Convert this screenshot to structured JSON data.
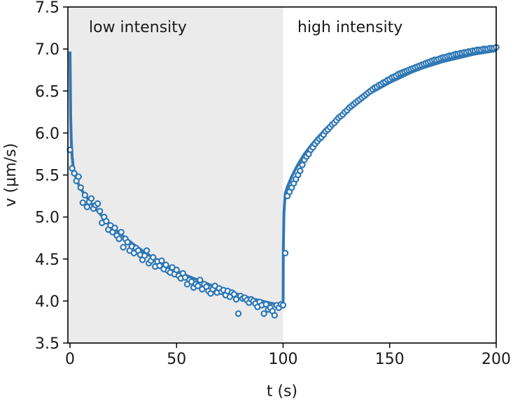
{
  "colors": {
    "series": "#2f78b5",
    "shade": "#ebebeb",
    "axis": "#000000",
    "text": "#1a1a1a",
    "marker_fill": "#ffffff"
  },
  "chart_data": {
    "type": "scatter",
    "xlabel": "t (s)",
    "ylabel": "v (µm/s)",
    "xlim": [
      -1,
      200
    ],
    "ylim": [
      3.5,
      7.5
    ],
    "xticks": [
      0,
      50,
      100,
      150,
      200
    ],
    "xtick_labels": [
      "0",
      "50",
      "100",
      "150",
      "200"
    ],
    "yticks": [
      3.5,
      4.0,
      4.5,
      5.0,
      5.5,
      6.0,
      6.5,
      7.0,
      7.5
    ],
    "ytick_labels": [
      "3.5",
      "4.0",
      "4.5",
      "5.0",
      "5.5",
      "6.0",
      "6.5",
      "7.0",
      "7.5"
    ],
    "grid": false,
    "regions": [
      {
        "label": "low intensity",
        "x_range": [
          -1,
          100
        ],
        "shaded": true
      },
      {
        "label": "high intensity",
        "x_range": [
          100,
          200
        ],
        "shaded": false
      }
    ],
    "series": [
      {
        "kind": "points",
        "x": [
          0,
          1,
          2,
          3,
          4,
          5,
          6,
          7,
          8,
          9,
          10,
          11,
          12,
          13,
          14,
          15,
          16,
          17,
          18,
          19,
          20,
          21,
          22,
          23,
          24,
          25,
          26,
          27,
          28,
          29,
          30,
          31,
          32,
          33,
          34,
          35,
          36,
          37,
          38,
          39,
          40,
          41,
          42,
          43,
          44,
          45,
          46,
          47,
          48,
          49,
          50,
          51,
          52,
          53,
          54,
          55,
          56,
          57,
          58,
          59,
          60,
          61,
          62,
          63,
          64,
          65,
          66,
          67,
          68,
          69,
          70,
          71,
          72,
          73,
          74,
          75,
          76,
          77,
          78,
          79,
          80,
          81,
          82,
          83,
          84,
          85,
          86,
          87,
          88,
          89,
          90,
          91,
          92,
          93,
          94,
          95,
          96,
          97,
          98,
          99,
          100,
          101,
          102,
          103,
          104,
          105,
          106,
          107,
          108,
          109,
          110,
          111,
          112,
          113,
          114,
          115,
          116,
          117,
          118,
          119,
          120,
          121,
          122,
          123,
          124,
          125,
          126,
          127,
          128,
          129,
          130,
          131,
          132,
          133,
          134,
          135,
          136,
          137,
          138,
          139,
          140,
          141,
          142,
          143,
          144,
          145,
          146,
          147,
          148,
          149,
          150,
          151,
          152,
          153,
          154,
          155,
          156,
          157,
          158,
          159,
          160,
          161,
          162,
          163,
          164,
          165,
          166,
          167,
          168,
          169,
          170,
          171,
          172,
          173,
          174,
          175,
          176,
          177,
          178,
          179,
          180,
          181,
          182,
          183,
          184,
          185,
          186,
          187,
          188,
          189,
          190,
          191,
          192,
          193,
          194,
          195,
          196,
          197,
          198,
          199,
          200
        ],
        "y": [
          5.8,
          5.58,
          5.52,
          5.43,
          5.48,
          5.35,
          5.17,
          5.26,
          5.12,
          5.18,
          5.22,
          5.1,
          5.14,
          5.16,
          5.07,
          4.93,
          5.0,
          4.95,
          4.85,
          4.9,
          4.82,
          4.87,
          4.78,
          4.74,
          4.82,
          4.64,
          4.74,
          4.7,
          4.6,
          4.65,
          4.57,
          4.63,
          4.6,
          4.55,
          4.49,
          4.54,
          4.6,
          4.45,
          4.48,
          4.52,
          4.41,
          4.47,
          4.42,
          4.48,
          4.38,
          4.43,
          4.36,
          4.34,
          4.4,
          4.32,
          4.37,
          4.3,
          4.27,
          4.33,
          4.28,
          4.2,
          4.25,
          4.23,
          4.16,
          4.2,
          4.18,
          4.25,
          4.14,
          4.2,
          4.17,
          4.12,
          4.09,
          4.14,
          4.18,
          4.1,
          4.15,
          4.11,
          4.13,
          4.07,
          4.12,
          4.05,
          4.1,
          4.08,
          4.02,
          3.85,
          4.06,
          4.03,
          4.04,
          4.01,
          3.98,
          4.02,
          4.0,
          3.97,
          3.93,
          3.99,
          3.95,
          3.85,
          3.96,
          3.9,
          3.92,
          3.88,
          3.83,
          3.95,
          3.92,
          3.96,
          3.95,
          4.57,
          5.25,
          5.3,
          5.35,
          5.4,
          5.45,
          5.5,
          5.55,
          5.62,
          5.68,
          5.72,
          5.75,
          5.8,
          5.83,
          5.87,
          5.9,
          5.93,
          5.95,
          5.98,
          6.02,
          6.04,
          6.07,
          6.1,
          6.12,
          6.15,
          6.18,
          6.2,
          6.22,
          6.25,
          6.27,
          6.3,
          6.32,
          6.34,
          6.36,
          6.38,
          6.4,
          6.42,
          6.44,
          6.46,
          6.48,
          6.5,
          6.52,
          6.54,
          6.55,
          6.57,
          6.58,
          6.6,
          6.61,
          6.63,
          6.64,
          6.66,
          6.67,
          6.68,
          6.7,
          6.71,
          6.72,
          6.73,
          6.74,
          6.75,
          6.76,
          6.77,
          6.78,
          6.79,
          6.8,
          6.81,
          6.82,
          6.83,
          6.84,
          6.85,
          6.86,
          6.87,
          6.87,
          6.88,
          6.89,
          6.9,
          6.9,
          6.91,
          6.92,
          6.92,
          6.93,
          6.94,
          6.94,
          6.95,
          6.95,
          6.96,
          6.96,
          6.97,
          6.97,
          6.98,
          6.98,
          6.99,
          6.99,
          6.99,
          7.0,
          7.0,
          7.0,
          7.01,
          7.01,
          7.01,
          7.02
        ],
        "style": "open-circle"
      },
      {
        "kind": "fit-line",
        "x": [
          0,
          0.3,
          0.6,
          1,
          1.5,
          2,
          3,
          4,
          5,
          6,
          8,
          10,
          12,
          15,
          18,
          21,
          25,
          30,
          35,
          40,
          45,
          50,
          55,
          60,
          65,
          70,
          75,
          80,
          85,
          90,
          95,
          99.9,
          100,
          100.1,
          100.4,
          101,
          102,
          103,
          104,
          106,
          108,
          110,
          113,
          116,
          120,
          125,
          130,
          135,
          140,
          145,
          150,
          155,
          160,
          165,
          170,
          175,
          180,
          185,
          190,
          195,
          200
        ],
        "y": [
          6.97,
          6.2,
          5.9,
          5.72,
          5.6,
          5.53,
          5.45,
          5.39,
          5.34,
          5.3,
          5.23,
          5.16,
          5.1,
          5.01,
          4.93,
          4.86,
          4.77,
          4.67,
          4.58,
          4.5,
          4.43,
          4.36,
          4.3,
          4.25,
          4.2,
          4.15,
          4.11,
          4.07,
          4.03,
          4.0,
          3.97,
          3.94,
          3.94,
          4.6,
          5.05,
          5.28,
          5.36,
          5.42,
          5.48,
          5.58,
          5.67,
          5.75,
          5.85,
          5.94,
          6.05,
          6.17,
          6.28,
          6.37,
          6.46,
          6.53,
          6.6,
          6.66,
          6.72,
          6.77,
          6.81,
          6.85,
          6.88,
          6.91,
          6.94,
          6.96,
          6.98
        ],
        "style": "solid"
      }
    ]
  }
}
